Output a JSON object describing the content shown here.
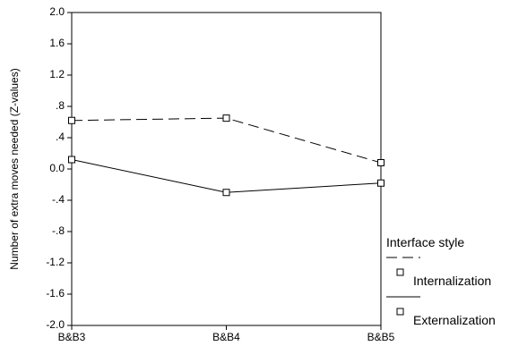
{
  "chart_data": {
    "type": "line",
    "title": "",
    "xlabel": "",
    "ylabel": "Number of extra moves needed (Z-values)",
    "categories": [
      "B&B3",
      "B&B4",
      "B&B5"
    ],
    "ylim": [
      -2.0,
      2.0
    ],
    "yticks": [
      "2.0",
      "1.6",
      "1.2",
      ".8",
      ".4",
      "0.0",
      "-.4",
      "-.8",
      "-1.2",
      "-1.6",
      "-2.0"
    ],
    "ytick_values": [
      2.0,
      1.6,
      1.2,
      0.8,
      0.4,
      0.0,
      -0.4,
      -0.8,
      -1.2,
      -1.6,
      -2.0
    ],
    "grid": false,
    "legend_position": "right",
    "legend_title": "Interface style",
    "series": [
      {
        "name": "Internalization",
        "values": [
          0.62,
          0.65,
          0.08
        ],
        "line_style": "dashed",
        "marker": "square",
        "color": "#000000"
      },
      {
        "name": "Externalization",
        "values": [
          0.12,
          -0.3,
          -0.18
        ],
        "line_style": "solid",
        "marker": "square",
        "color": "#000000"
      }
    ]
  }
}
